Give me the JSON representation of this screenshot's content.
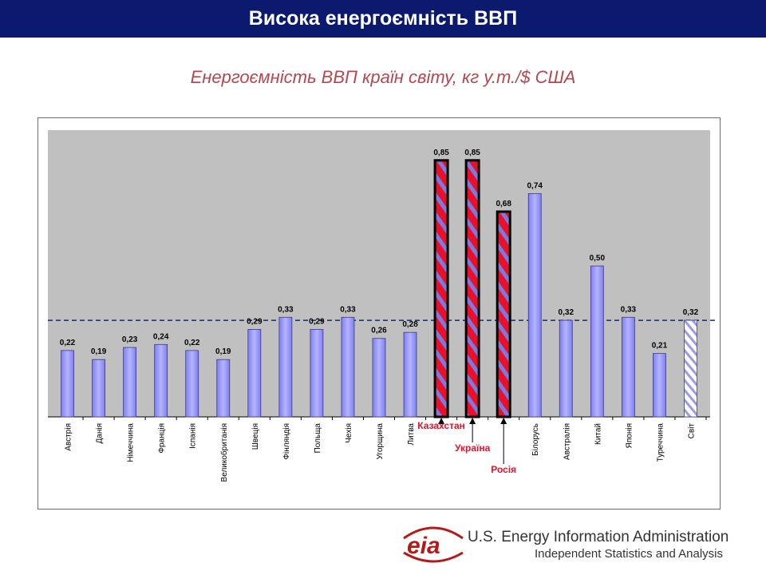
{
  "header": {
    "title": "Висока енергоємність ВВП"
  },
  "colors": {
    "title_bar": "#0b1a6e",
    "subtitle": "#b6474f",
    "bar_fill": "#9a9af5",
    "highlight_red": "#e8102a",
    "highlight_label": "#e8102a",
    "plot_bg": "#c0c0c0"
  },
  "chart_data": {
    "type": "bar",
    "title": "Енергоємність ВВП країн світу, кг у.т./$ США",
    "categories": [
      "Австрія",
      "Данія",
      "Німеччина",
      "Франція",
      "Іспанія",
      "Великобританія",
      "Швеція",
      "Фінляндія",
      "Польща",
      "Чехія",
      "Угорщина",
      "Литва",
      "Казахстан",
      "Україна",
      "Росія",
      "Білорусь",
      "Австралія",
      "Китай",
      "Японія",
      "Туреччина",
      "Світ"
    ],
    "values": [
      0.22,
      0.19,
      0.23,
      0.24,
      0.22,
      0.19,
      0.29,
      0.33,
      0.29,
      0.33,
      0.26,
      0.28,
      0.85,
      0.85,
      0.68,
      0.74,
      0.32,
      0.5,
      0.33,
      0.21,
      0.32
    ],
    "value_labels": [
      "0,22",
      "0,19",
      "0,23",
      "0,24",
      "0,22",
      "0,19",
      "0,29",
      "0,33",
      "0,29",
      "0,33",
      "0,26",
      "0,28",
      "0,85",
      "0,85",
      "0,68",
      "0,74",
      "0,32",
      "0,50",
      "0,33",
      "0,21",
      "0,32"
    ],
    "highlighted": [
      "Казахстан",
      "Україна",
      "Росія"
    ],
    "world_marker": "Світ",
    "reference_line": 0.32,
    "ylim": [
      0,
      0.95
    ],
    "grid": false,
    "legend": "none"
  },
  "source": {
    "logo_text": "eia",
    "name": "U.S. Energy Information Administration",
    "tagline": "Independent Statistics and Analysis"
  }
}
